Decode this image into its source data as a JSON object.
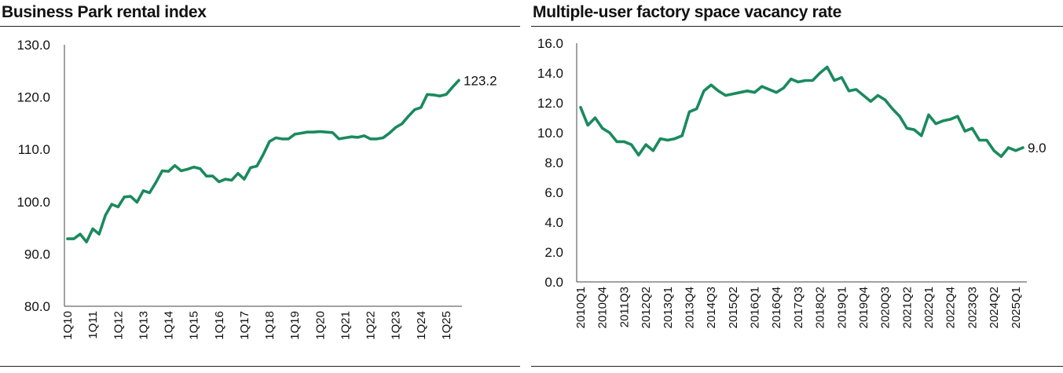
{
  "chart_data": [
    {
      "type": "line",
      "title": "Business Park rental index",
      "yticks": [
        "130.0",
        "120.0",
        "110.0",
        "100.0",
        "90.0",
        "80.0"
      ],
      "ylim": [
        80,
        130
      ],
      "xticks": [
        "1Q10",
        "1Q11",
        "1Q12",
        "1Q13",
        "1Q14",
        "1Q15",
        "1Q16",
        "1Q17",
        "1Q18",
        "1Q19",
        "1Q20",
        "1Q21",
        "1Q22",
        "1Q23",
        "1Q24",
        "1Q25"
      ],
      "end_label": "123.2",
      "line_color": "#1a8a5e",
      "grid": false,
      "values": [
        92.9,
        92.9,
        93.8,
        92.3,
        94.8,
        93.8,
        97.4,
        99.5,
        99.0,
        100.9,
        101.0,
        99.9,
        102.1,
        101.7,
        103.7,
        105.9,
        105.8,
        106.9,
        105.9,
        106.2,
        106.6,
        106.3,
        104.9,
        104.9,
        103.8,
        104.3,
        104.1,
        105.4,
        104.3,
        106.5,
        106.8,
        109.0,
        111.5,
        112.2,
        112.0,
        112.0,
        112.9,
        113.1,
        113.3,
        113.3,
        113.4,
        113.3,
        113.2,
        112.0,
        112.2,
        112.4,
        112.3,
        112.6,
        112.0,
        112.0,
        112.2,
        113.1,
        114.2,
        114.9,
        116.3,
        117.6,
        118.0,
        120.5,
        120.4,
        120.2,
        120.5,
        121.9,
        123.2
      ]
    },
    {
      "type": "line",
      "title": "Multiple-user factory space vacancy rate",
      "yticks": [
        "16.0",
        "14.0",
        "12.0",
        "10.0",
        "8.0",
        "6.0",
        "4.0",
        "2.0",
        "0.0"
      ],
      "ylim": [
        0,
        16
      ],
      "xticks": [
        "2010Q1",
        "2010Q4",
        "2011Q3",
        "2012Q2",
        "2013Q1",
        "2013Q4",
        "2014Q3",
        "2015Q2",
        "2016Q1",
        "2016Q4",
        "2017Q3",
        "2018Q2",
        "2019Q1",
        "2019Q4",
        "2020Q3",
        "2021Q2",
        "2022Q1",
        "2022Q4",
        "2023Q3",
        "2024Q2",
        "2025Q1"
      ],
      "end_label": "9.0",
      "line_color": "#1a8a5e",
      "grid": false,
      "values": [
        11.7,
        10.5,
        11.0,
        10.3,
        10.0,
        9.4,
        9.4,
        9.2,
        8.5,
        9.2,
        8.8,
        9.6,
        9.5,
        9.6,
        9.8,
        11.4,
        11.6,
        12.8,
        13.2,
        12.8,
        12.5,
        12.6,
        12.7,
        12.8,
        12.7,
        13.1,
        12.9,
        12.7,
        13.0,
        13.6,
        13.4,
        13.5,
        13.5,
        14.0,
        14.4,
        13.5,
        13.7,
        12.8,
        12.9,
        12.5,
        12.1,
        12.5,
        12.2,
        11.6,
        11.1,
        10.3,
        10.2,
        9.8,
        11.2,
        10.6,
        10.8,
        10.9,
        11.1,
        10.1,
        10.3,
        9.5,
        9.5,
        8.8,
        8.4,
        9.0,
        8.8,
        9.0
      ]
    }
  ]
}
